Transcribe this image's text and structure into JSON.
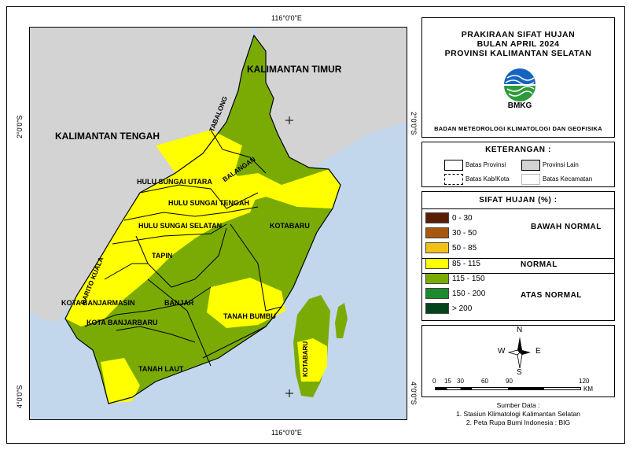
{
  "coordinates": {
    "lon_top": "116°0'0\"E",
    "lon_bottom": "116°0'0\"E",
    "lat_left_upper": "2°0'0\"S",
    "lat_left_lower": "4°0'0\"S",
    "lat_right_upper": "2°0'0\"S",
    "lat_right_lower": "4°0'0\"S"
  },
  "map_labels": {
    "kaltim": "KALIMANTAN TIMUR",
    "kalteng": "KALIMANTAN TENGAH",
    "tabalong": "TABALONG",
    "balangan": "BALANGAN",
    "hsu": "HULU SUNGAI UTARA",
    "hst": "HULU SUNGAI TENGAH",
    "hss": "HULU SUNGAI SELATAN",
    "kotabaru": "KOTABARU",
    "kotabaru2": "KOTABARU",
    "tapin": "TAPIN",
    "barito_kuala": "BARITO KUALA",
    "banjarmasin": "KOTA BANJARMASIN",
    "banjar": "BANJAR",
    "banjarbaru": "KOTA BANJARBARU",
    "tanah_bumbu": "TANAH BUMBU",
    "tanah_laut": "TANAH LAUT"
  },
  "title": {
    "line1": "PRAKIRAAN SIFAT HUJAN",
    "line2": "BULAN APRIL 2024",
    "line3": "PROVINSI KALIMANTAN SELATAN",
    "logo_text": "BMKG",
    "agency": "BADAN METEOROLOGI KLIMATOLOGI DAN GEOFISIKA"
  },
  "keterangan": {
    "heading": "KETERANGAN :",
    "batas_provinsi": "Batas Provinsi",
    "provinsi_lain": "Provinsi Lain",
    "batas_kabkota": "Batas Kab/Kota",
    "batas_kecamatan": "Batas Kecamatan"
  },
  "legend": {
    "heading": "SIFAT HUJAN (%) :",
    "items": [
      {
        "label": "0 - 30",
        "color": "#5a1e05"
      },
      {
        "label": "30 - 50",
        "color": "#a8570f"
      },
      {
        "label": "50 - 85",
        "color": "#f2c118"
      },
      {
        "label": "85 - 115",
        "color": "#ffff00"
      },
      {
        "label": "115 - 150",
        "color": "#7aab05"
      },
      {
        "label": "150 - 200",
        "color": "#1e8a2d"
      },
      {
        "label": "> 200",
        "color": "#05431a"
      }
    ],
    "class_bawah": "BAWAH NORMAL",
    "class_normal": "NORMAL",
    "class_atas": "ATAS NORMAL"
  },
  "compass": {
    "n": "N",
    "s": "S",
    "e": "E",
    "w": "W"
  },
  "scale": {
    "ticks": [
      "0",
      "15",
      "30",
      "60",
      "90",
      "120"
    ],
    "unit": "KM"
  },
  "source": {
    "heading": "Sumber Data :",
    "line1": "1. Stasiun Klimatologi Kalimantan Selatan",
    "line2": "2. Peta Rupa Bumi Indonesia : BIG"
  },
  "colors": {
    "sea": "#c3d7ec",
    "other_province": "#d3d3d3",
    "green": "#7aab05",
    "yellow": "#ffff00"
  }
}
